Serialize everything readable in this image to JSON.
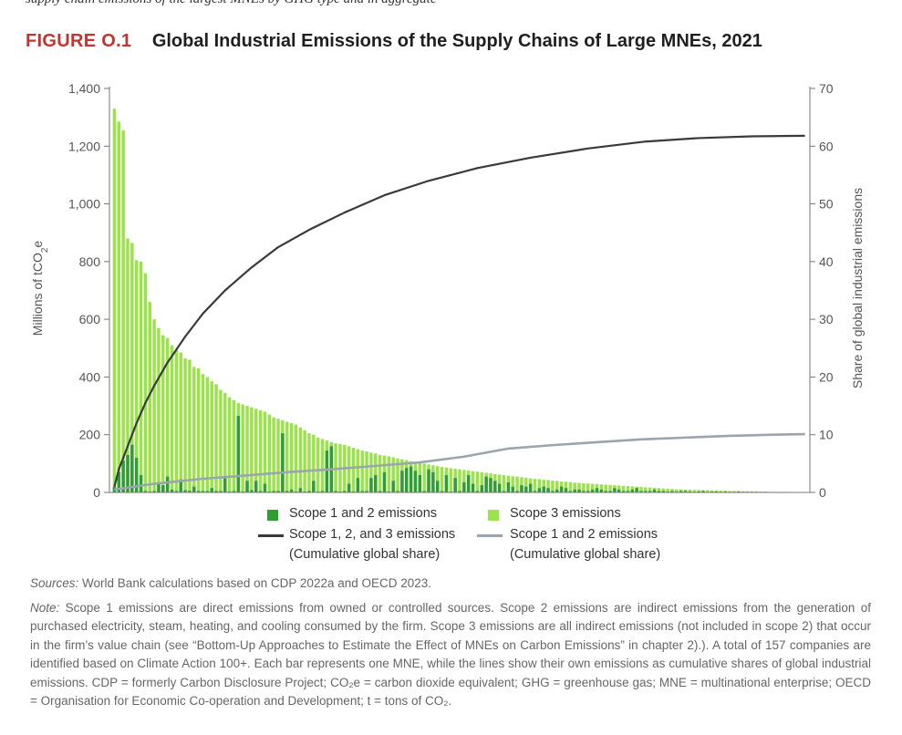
{
  "header_fragment": "supply chain emissions of the largest MNEs by GHG type and in aggregate",
  "figure": {
    "label": "FIGURE O.1",
    "title": "Global Industrial Emissions of the Supply Chains of Large MNEs, 2021"
  },
  "chart_data": {
    "type": "bar",
    "title": "Global Industrial Emissions of the Supply Chains of Large MNEs, 2021",
    "ylabel_left": "Millions of tCO2e",
    "ylabel_right": "Share of global industrial emissions",
    "ylim_left": [
      0,
      1400
    ],
    "ylim_right": [
      0,
      70
    ],
    "yticks_left": [
      "0",
      "200",
      "400",
      "600",
      "800",
      "1,000",
      "1,200",
      "1,400"
    ],
    "yticks_right": [
      "0",
      "10",
      "20",
      "30",
      "40",
      "50",
      "60",
      "70"
    ],
    "n_companies": 157,
    "series": [
      {
        "name": "Scope 3 emissions",
        "kind": "bar",
        "axis": "left",
        "color": "#9be34a",
        "values": [
          1330,
          1285,
          1255,
          880,
          865,
          805,
          800,
          760,
          660,
          600,
          570,
          545,
          535,
          510,
          495,
          485,
          465,
          460,
          435,
          430,
          410,
          400,
          385,
          375,
          355,
          345,
          330,
          320,
          310,
          305,
          300,
          295,
          290,
          285,
          280,
          270,
          260,
          255,
          250,
          245,
          240,
          235,
          225,
          215,
          205,
          200,
          190,
          185,
          180,
          175,
          170,
          168,
          165,
          160,
          155,
          150,
          145,
          142,
          138,
          135,
          130,
          128,
          125,
          122,
          118,
          115,
          112,
          108,
          105,
          102,
          100,
          97,
          94,
          91,
          88,
          86,
          84,
          82,
          80,
          78,
          76,
          74,
          72,
          70,
          68,
          66,
          64,
          62,
          60,
          58,
          56,
          55,
          53,
          51,
          49,
          47,
          46,
          44,
          43,
          41,
          40,
          38,
          37,
          36,
          34,
          33,
          32,
          31,
          30,
          29,
          28,
          27,
          26,
          25,
          24,
          23,
          22,
          21,
          20,
          19,
          18,
          17,
          16,
          15,
          14,
          13,
          12,
          11,
          11,
          10,
          10,
          9,
          9,
          8,
          8,
          7,
          7,
          6,
          6,
          5,
          5,
          5,
          4,
          4,
          4,
          3,
          3,
          3,
          2,
          2,
          2,
          2,
          1,
          1,
          1,
          1,
          1
        ]
      },
      {
        "name": "Scope 1 and 2 emissions",
        "kind": "bar",
        "axis": "left",
        "color": "#2e9e33",
        "values": [
          20,
          70,
          110,
          130,
          165,
          120,
          60,
          5,
          3,
          5,
          30,
          25,
          55,
          10,
          5,
          45,
          8,
          6,
          20,
          5,
          5,
          5,
          15,
          5,
          5,
          50,
          3,
          5,
          265,
          3,
          40,
          8,
          40,
          5,
          30,
          3,
          5,
          5,
          205,
          5,
          10,
          3,
          15,
          3,
          5,
          40,
          3,
          5,
          145,
          160,
          5,
          3,
          5,
          30,
          3,
          50,
          5,
          5,
          50,
          60,
          5,
          70,
          3,
          40,
          5,
          75,
          85,
          90,
          75,
          60,
          5,
          80,
          70,
          40,
          5,
          60,
          3,
          50,
          5,
          35,
          60,
          30,
          5,
          25,
          55,
          50,
          40,
          30,
          5,
          35,
          20,
          5,
          25,
          20,
          30,
          5,
          15,
          20,
          15,
          5,
          10,
          20,
          15,
          5,
          10,
          10,
          5,
          5,
          10,
          15,
          10,
          5,
          5,
          15,
          10,
          5,
          5,
          10,
          15,
          5,
          5,
          5,
          10,
          5,
          5,
          3,
          5,
          3,
          5,
          5,
          3,
          2,
          3,
          5,
          2,
          3,
          3,
          2,
          3,
          2,
          2,
          3,
          2,
          2,
          1,
          2,
          1,
          2,
          1,
          1,
          1,
          1,
          1,
          1,
          0,
          0,
          1
        ]
      },
      {
        "name": "Scope 1, 2, and 3 emissions",
        "label_line2": "(Cumulative global share)",
        "kind": "line",
        "axis": "right",
        "color": "#3a3a3a",
        "x": [
          1,
          2,
          4,
          6,
          8,
          10,
          13,
          17,
          21,
          26,
          32,
          38,
          45,
          53,
          62,
          72,
          83,
          95,
          108,
          121,
          133,
          145,
          157
        ],
        "values": [
          1,
          4,
          8,
          12,
          15.5,
          18.5,
          22.5,
          27,
          31,
          35,
          39,
          42.5,
          45.5,
          48.5,
          51.5,
          54,
          56.2,
          58,
          59.6,
          60.8,
          61.4,
          61.7,
          61.8
        ]
      },
      {
        "name": "Scope 1 and 2 emissions",
        "label_line2": "(Cumulative global share)",
        "kind": "line",
        "axis": "right",
        "color": "#9aa5ad",
        "x": [
          1,
          10,
          20,
          30,
          40,
          50,
          60,
          70,
          80,
          90,
          100,
          110,
          120,
          130,
          140,
          150,
          157
        ],
        "values": [
          0.5,
          1.5,
          2.3,
          2.9,
          3.5,
          4.0,
          4.6,
          5.2,
          6.2,
          7.6,
          8.2,
          8.7,
          9.2,
          9.5,
          9.8,
          10.0,
          10.1
        ]
      }
    ]
  },
  "legend": {
    "scope12_bar": "Scope 1 and 2 emissions",
    "scope3_bar": "Scope 3 emissions",
    "line_total": "Scope 1, 2, and 3 emissions",
    "line_total_sub": "(Cumulative global share)",
    "line_scope12": "Scope 1 and 2 emissions",
    "line_scope12_sub": "(Cumulative global share)"
  },
  "sources": {
    "lead": "Sources:",
    "text": "World Bank calculations based on CDP 2022a and OECD 2023."
  },
  "note": {
    "lead": "Note:",
    "text": "Scope 1 emissions are direct emissions from owned or controlled sources. Scope 2 emissions are indirect emissions from the generation of purchased electricity, steam, heating, and cooling consumed by the firm. Scope 3 emissions are all indirect emissions (not included in scope 2) that occur in the firm’s value chain (see “Bottom-Up Approaches to Estimate the Effect of MNEs on Carbon Emissions” in chapter 2).). A total of 157 companies are identified based on Climate Action 100+. Each bar represents one MNE, while the lines show their own emissions as cumulative shares of global industrial emissions. CDP = formerly Carbon Disclosure Project; CO₂e = carbon dioxide equivalent; GHG = greenhouse gas; MNE = multinational enterprise; OECD = Organisation for Economic Co-operation and Development; t = tons of CO₂."
  }
}
